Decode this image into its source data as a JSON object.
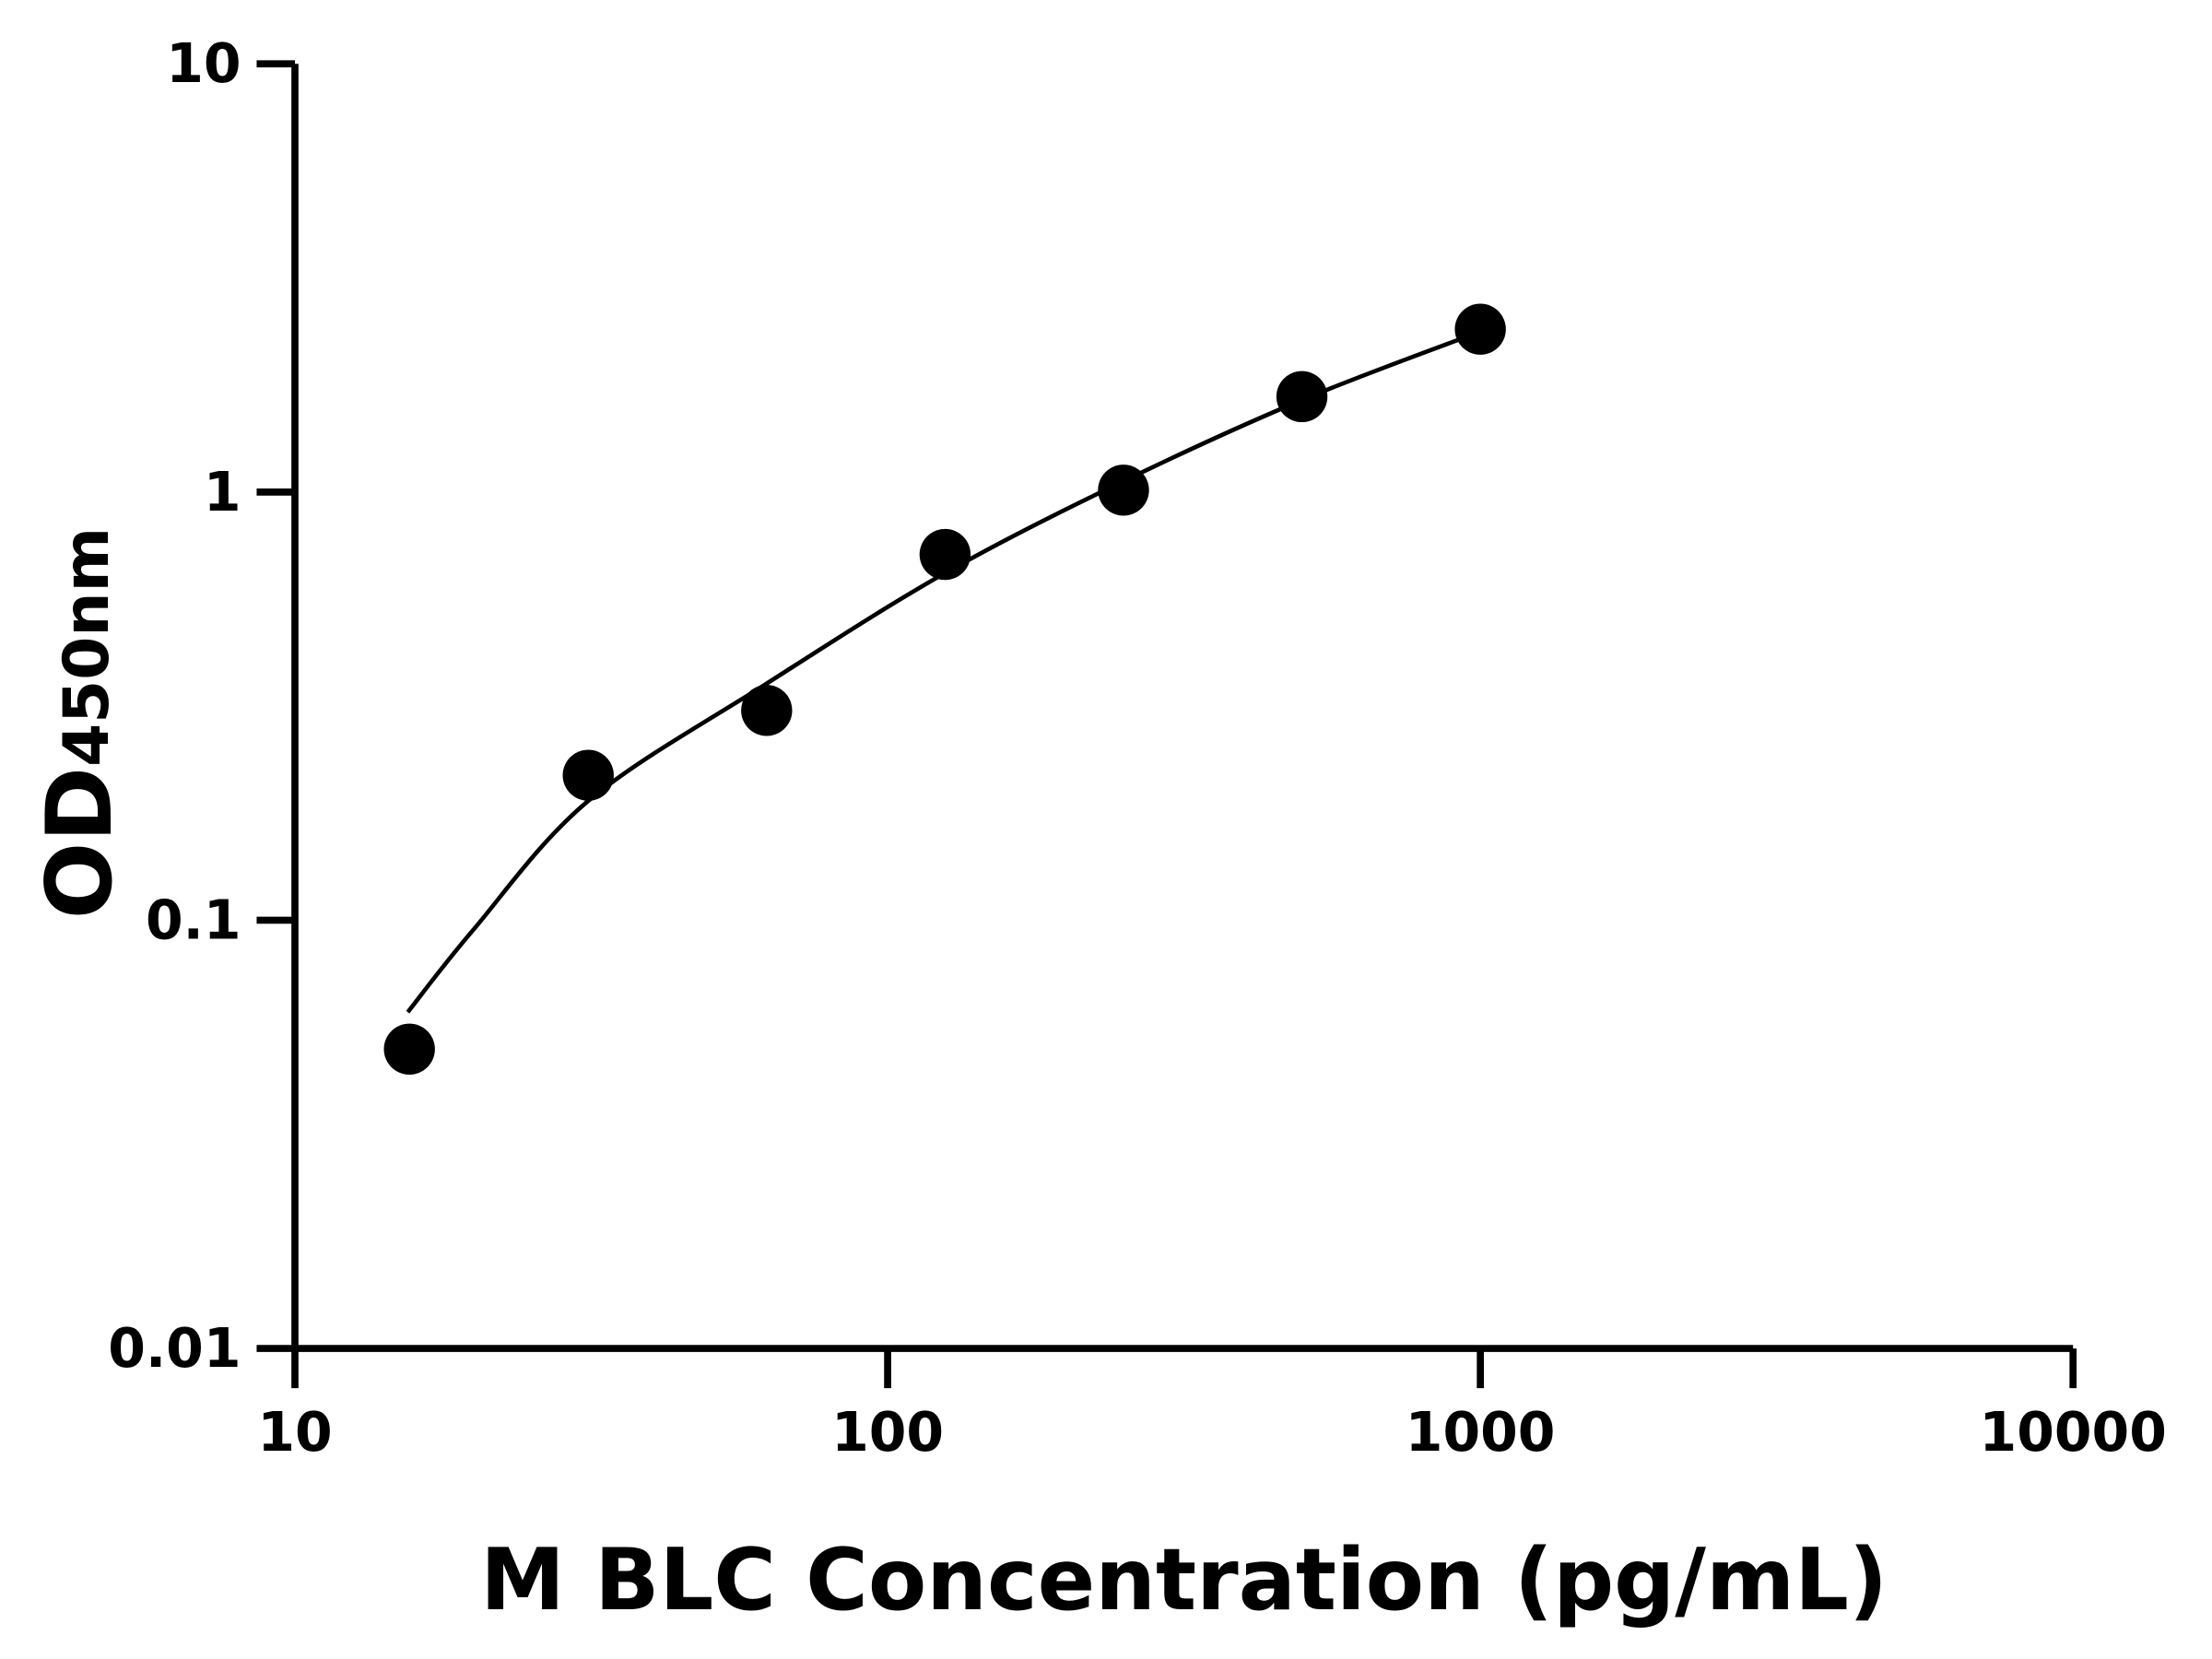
{
  "chart_data": {
    "type": "scatter",
    "title": "",
    "xlabel": "M BLC Concentration (pg/mL)",
    "ylabel_main": "OD",
    "ylabel_sub": "450nm",
    "xscale": "log",
    "yscale": "log",
    "xlim": [
      10,
      10000
    ],
    "ylim": [
      0.01,
      10
    ],
    "xticks": [
      10,
      100,
      1000,
      10000
    ],
    "xtick_labels": [
      "10",
      "100",
      "1000",
      "10000"
    ],
    "yticks": [
      0.01,
      0.1,
      1,
      10
    ],
    "ytick_labels": [
      "0.01",
      "0.1",
      "1",
      "10"
    ],
    "grid": false,
    "legend": "none",
    "color": "#000000",
    "points": {
      "x": [
        15.6,
        31.25,
        62.5,
        125,
        250,
        500,
        1000
      ],
      "y": [
        0.05,
        0.218,
        0.309,
        0.715,
        1.01,
        1.67,
        2.4
      ]
    },
    "fit_curve": {
      "x": [
        15.5,
        20,
        31.25,
        62.5,
        125,
        250,
        500,
        1000
      ],
      "y": [
        0.061,
        0.095,
        0.19,
        0.357,
        0.647,
        1.06,
        1.64,
        2.37
      ]
    }
  }
}
